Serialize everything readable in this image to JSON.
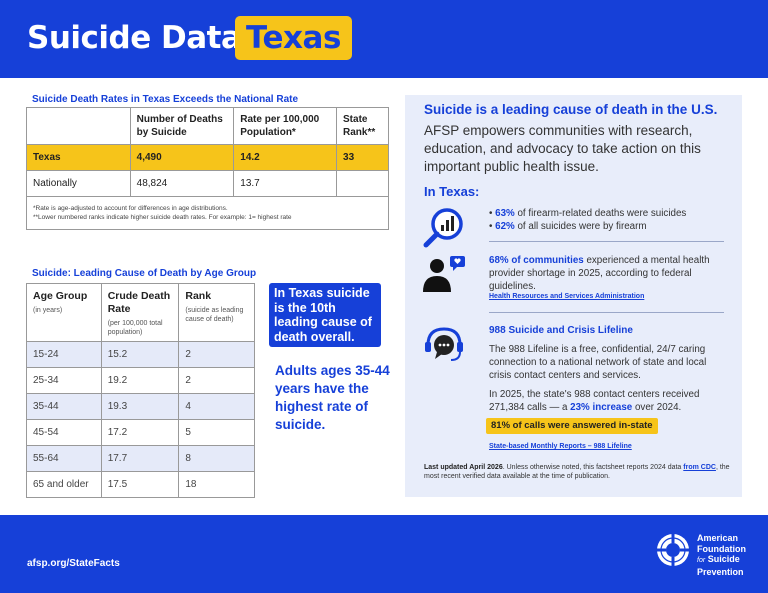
{
  "header": {
    "title_prefix": "Suicide Data:",
    "state": "Texas"
  },
  "rates_table": {
    "heading": "Suicide Death Rates in Texas Exceeds the National Rate",
    "columns": [
      "",
      "Number of Deaths by Suicide",
      "Rate per 100,000 Population*",
      "State Rank**"
    ],
    "rows": [
      {
        "label": "Texas",
        "deaths": "4,490",
        "rate": "14.2",
        "rank": "33"
      },
      {
        "label": "Nationally",
        "deaths": "48,824",
        "rate": "13.7",
        "rank": ""
      }
    ],
    "note_1": "*Rate is age-adjusted to account for differences in age distributions.",
    "note_2": "**Lower numbered ranks indicate higher suicide death rates. For example: 1= highest rate"
  },
  "age_table": {
    "heading": "Suicide: Leading Cause of Death by Age Group",
    "col1_title": "Age Group",
    "col1_sub": "(in years)",
    "col2_title": "Crude Death Rate",
    "col2_sub": "(per 100,000 total population)",
    "col3_title": "Rank",
    "col3_sub": "(suicide as leading cause of death)",
    "rows": [
      {
        "age": "15-24",
        "rate": "15.2",
        "rank": "2"
      },
      {
        "age": "25-34",
        "rate": "19.2",
        "rank": "2"
      },
      {
        "age": "35-44",
        "rate": "19.3",
        "rank": "4"
      },
      {
        "age": "45-54",
        "rate": "17.2",
        "rank": "5"
      },
      {
        "age": "55-64",
        "rate": "17.7",
        "rank": "8"
      },
      {
        "age": "65 and older",
        "rate": "17.5",
        "rank": "18"
      }
    ]
  },
  "callouts": {
    "box": "In Texas suicide is the 10th leading cause of death overall.",
    "text": "Adults ages 35-44 years have the highest rate of suicide."
  },
  "panel": {
    "title": "Suicide is a leading cause of death in the U.S.",
    "lead": "AFSP empowers communities with research, education, and advocacy to take action on this important public health issue.",
    "subtitle": "In Texas:",
    "firearm": {
      "b1_strong": "63%",
      "b1_rest": " of firearm-related deaths were suicides",
      "b2_strong": "62%",
      "b2_rest": " of all suicides were by firearm"
    },
    "mental_health": {
      "strong": "68% of communities",
      "rest": " experienced a mental health provider shortage in 2025, according to federal guidelines.",
      "link": "Health Resources and Services Administration"
    },
    "lifeline": {
      "heading": "988 Suicide and Crisis Lifeline",
      "p1": "The 988 Lifeline is a free, confidential, 24/7 caring connection to a national network of state and local crisis contact centers and services.",
      "p2_a": "In 2025, the state's 988 contact centers received 271,384 calls — a ",
      "p2_strong": "23% increase",
      "p2_b": " over 2024.",
      "highlight": "81% of calls were answered in-state",
      "link": "State-based Monthly Reports – 988 Lifeline"
    },
    "footnote": {
      "strong": "Last updated April 2026",
      "a": ". Unless otherwise noted, this factsheet reports 2024 data ",
      "link": "from CDC",
      "b": ", the most recent verified data available at the time of publication."
    }
  },
  "footer": {
    "url": "afsp.org/StateFacts",
    "logo_line1": "American",
    "logo_line2": "Foundation",
    "logo_for": "for",
    "logo_line3": "Suicide",
    "logo_line4": "Prevention"
  },
  "icons": {
    "firearm": "magnifier-chart-icon",
    "mental_health": "person-chat-icon",
    "lifeline": "headset-chat-icon",
    "logo": "lifebuoy-logo-icon"
  },
  "colors": {
    "brand_blue": "#1640d8",
    "highlight_yellow": "#f6c41a",
    "panel_bg": "#e8edfa",
    "row_shade": "#e5eaf9"
  }
}
